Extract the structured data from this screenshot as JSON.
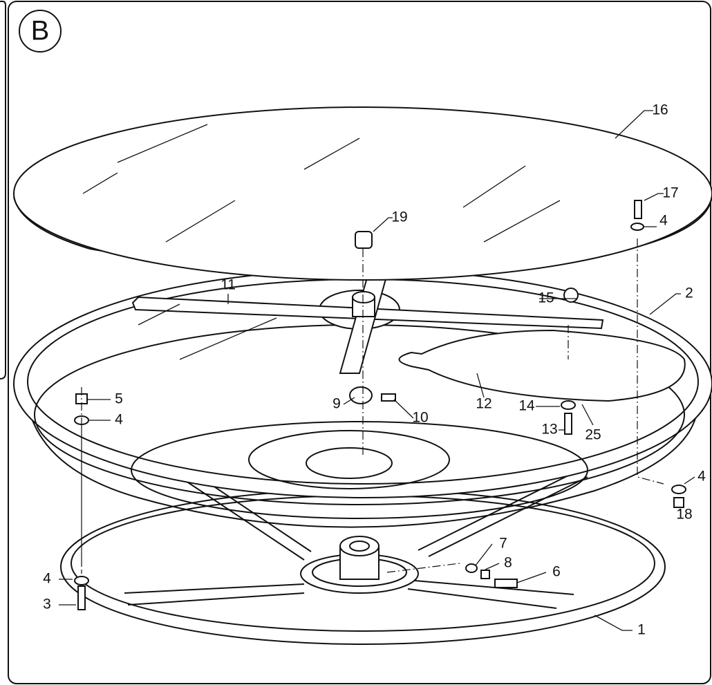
{
  "panel_label": "B",
  "callouts": [
    {
      "label": "16"
    },
    {
      "label": "17"
    },
    {
      "label": "4"
    },
    {
      "label": "19"
    },
    {
      "label": "11"
    },
    {
      "label": "15"
    },
    {
      "label": "2"
    },
    {
      "label": "5"
    },
    {
      "label": "4"
    },
    {
      "label": "9"
    },
    {
      "label": "10"
    },
    {
      "label": "12"
    },
    {
      "label": "14"
    },
    {
      "label": "13"
    },
    {
      "label": "25"
    },
    {
      "label": "4"
    },
    {
      "label": "18"
    },
    {
      "label": "7"
    },
    {
      "label": "8"
    },
    {
      "label": "6"
    },
    {
      "label": "4"
    },
    {
      "label": "3"
    },
    {
      "label": "1"
    }
  ]
}
